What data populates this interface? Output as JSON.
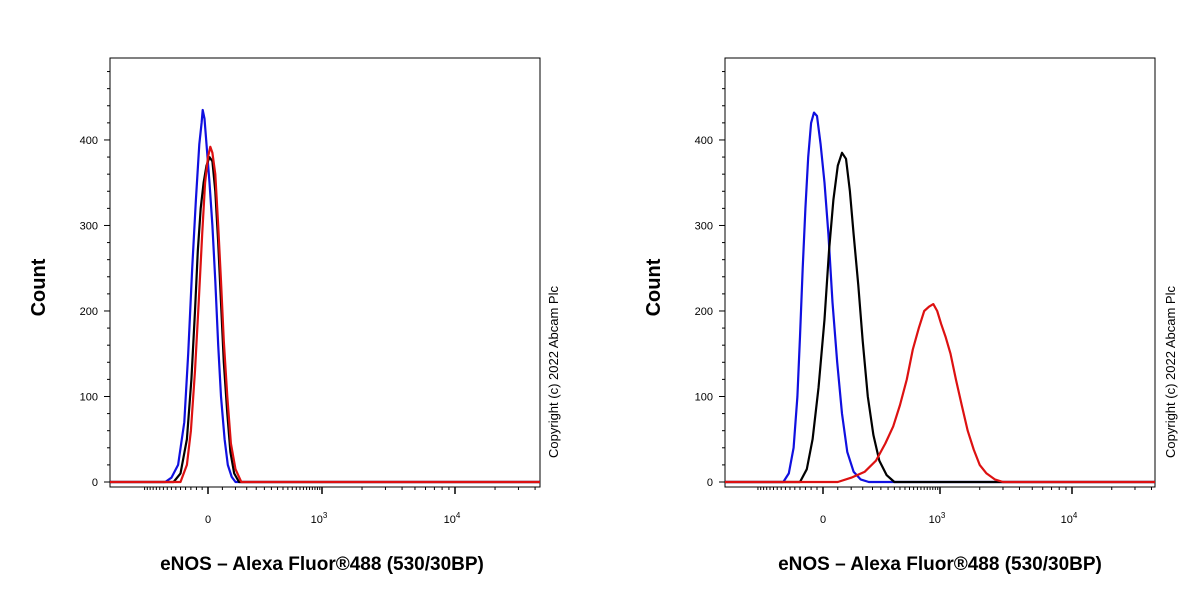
{
  "colors": {
    "blue": "#1010e0",
    "black": "#000000",
    "red": "#dd1111"
  },
  "chart_data": [
    {
      "type": "line",
      "title": "",
      "xlabel": "eNOS – Alexa Fluor®488 (530/30BP)",
      "ylabel": "Count",
      "copyright": "Copyright (c) 2022 Abcam Plc",
      "x_scale": "biexponential",
      "ylim": [
        0,
        490
      ],
      "yticks": [
        0,
        100,
        200,
        300,
        400
      ],
      "xticks": [
        {
          "value": 0,
          "base": "0",
          "exp": ""
        },
        {
          "value": 1000,
          "base": "10",
          "exp": "3"
        },
        {
          "value": 10000,
          "base": "10",
          "exp": "4"
        }
      ],
      "series": [
        {
          "name": "blue",
          "color": "#1010e0",
          "points": [
            [
              -170,
              0
            ],
            [
              -140,
              5
            ],
            [
              -110,
              20
            ],
            [
              -85,
              70
            ],
            [
              -70,
              150
            ],
            [
              -55,
              250
            ],
            [
              -42,
              330
            ],
            [
              -30,
              395
            ],
            [
              -22,
              420
            ],
            [
              -18,
              435
            ],
            [
              -12,
              425
            ],
            [
              -5,
              395
            ],
            [
              5,
              350
            ],
            [
              15,
              300
            ],
            [
              25,
              235
            ],
            [
              35,
              160
            ],
            [
              45,
              100
            ],
            [
              58,
              50
            ],
            [
              70,
              20
            ],
            [
              85,
              6
            ],
            [
              100,
              0
            ]
          ]
        },
        {
          "name": "black",
          "color": "#000000",
          "points": [
            [
              -130,
              0
            ],
            [
              -100,
              10
            ],
            [
              -75,
              50
            ],
            [
              -58,
              120
            ],
            [
              -45,
              200
            ],
            [
              -35,
              270
            ],
            [
              -25,
              320
            ],
            [
              -15,
              350
            ],
            [
              -5,
              370
            ],
            [
              5,
              380
            ],
            [
              15,
              375
            ],
            [
              25,
              340
            ],
            [
              35,
              280
            ],
            [
              45,
              210
            ],
            [
              55,
              140
            ],
            [
              68,
              80
            ],
            [
              80,
              35
            ],
            [
              95,
              10
            ],
            [
              115,
              0
            ]
          ]
        },
        {
          "name": "red",
          "color": "#dd1111",
          "points": [
            [
              -100,
              0
            ],
            [
              -75,
              20
            ],
            [
              -60,
              60
            ],
            [
              -45,
              130
            ],
            [
              -32,
              210
            ],
            [
              -20,
              290
            ],
            [
              -10,
              350
            ],
            [
              0,
              380
            ],
            [
              8,
              392
            ],
            [
              15,
              385
            ],
            [
              25,
              360
            ],
            [
              35,
              300
            ],
            [
              45,
              235
            ],
            [
              55,
              165
            ],
            [
              68,
              100
            ],
            [
              82,
              45
            ],
            [
              100,
              15
            ],
            [
              125,
              0
            ]
          ]
        }
      ]
    },
    {
      "type": "line",
      "title": "",
      "xlabel": "eNOS – Alexa Fluor®488 (530/30BP)",
      "ylabel": "Count",
      "copyright": "Copyright (c) 2022 Abcam Plc",
      "x_scale": "biexponential",
      "ylim": [
        0,
        490
      ],
      "yticks": [
        0,
        100,
        200,
        300,
        400
      ],
      "xticks": [
        {
          "value": 0,
          "base": "0",
          "exp": ""
        },
        {
          "value": 1000,
          "base": "10",
          "exp": "3"
        },
        {
          "value": 10000,
          "base": "10",
          "exp": "4"
        }
      ],
      "series": [
        {
          "name": "blue",
          "color": "#1010e0",
          "points": [
            [
              -150,
              0
            ],
            [
              -125,
              10
            ],
            [
              -105,
              40
            ],
            [
              -90,
              100
            ],
            [
              -80,
              170
            ],
            [
              -70,
              250
            ],
            [
              -60,
              320
            ],
            [
              -50,
              380
            ],
            [
              -40,
              420
            ],
            [
              -30,
              432
            ],
            [
              -20,
              428
            ],
            [
              -8,
              395
            ],
            [
              5,
              350
            ],
            [
              18,
              290
            ],
            [
              32,
              210
            ],
            [
              48,
              140
            ],
            [
              65,
              80
            ],
            [
              85,
              35
            ],
            [
              110,
              12
            ],
            [
              140,
              3
            ],
            [
              180,
              0
            ]
          ]
        },
        {
          "name": "black",
          "color": "#000000",
          "points": [
            [
              -80,
              0
            ],
            [
              -55,
              15
            ],
            [
              -35,
              50
            ],
            [
              -15,
              110
            ],
            [
              5,
              190
            ],
            [
              20,
              270
            ],
            [
              35,
              330
            ],
            [
              50,
              370
            ],
            [
              65,
              385
            ],
            [
              80,
              378
            ],
            [
              95,
              340
            ],
            [
              110,
              290
            ],
            [
              130,
              230
            ],
            [
              150,
              165
            ],
            [
              175,
              100
            ],
            [
              205,
              55
            ],
            [
              240,
              25
            ],
            [
              290,
              8
            ],
            [
              350,
              0
            ]
          ]
        },
        {
          "name": "red",
          "color": "#dd1111",
          "points": [
            [
              50,
              0
            ],
            [
              100,
              5
            ],
            [
              160,
              12
            ],
            [
              220,
              25
            ],
            [
              280,
              45
            ],
            [
              340,
              65
            ],
            [
              400,
              90
            ],
            [
              470,
              120
            ],
            [
              540,
              155
            ],
            [
              620,
              180
            ],
            [
              700,
              200
            ],
            [
              780,
              205
            ],
            [
              860,
              208
            ],
            [
              940,
              200
            ],
            [
              1020,
              185
            ],
            [
              1100,
              170
            ],
            [
              1200,
              150
            ],
            [
              1320,
              120
            ],
            [
              1460,
              90
            ],
            [
              1620,
              60
            ],
            [
              1800,
              38
            ],
            [
              2000,
              20
            ],
            [
              2250,
              10
            ],
            [
              2600,
              3
            ],
            [
              3000,
              0
            ]
          ]
        }
      ]
    }
  ]
}
